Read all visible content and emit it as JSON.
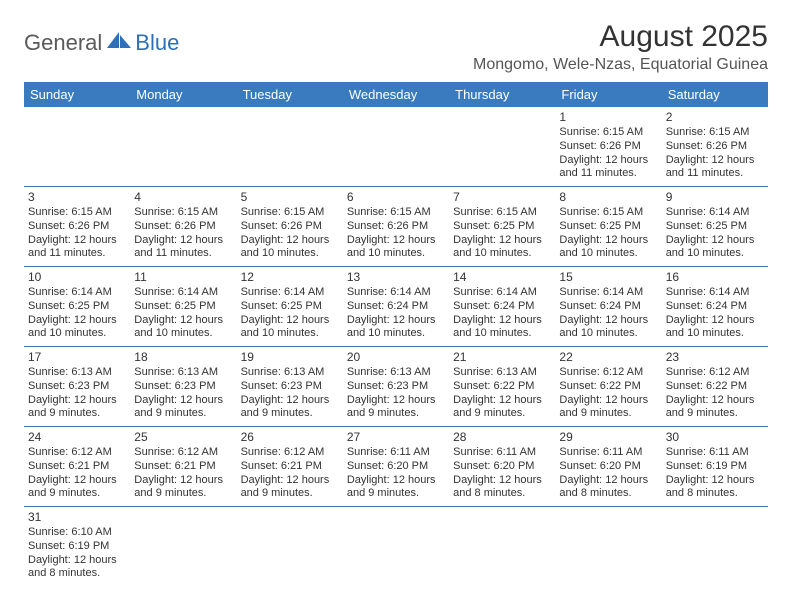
{
  "logo": {
    "general": "General",
    "blue": "Blue",
    "shape_color": "#2d6fb8"
  },
  "title": {
    "month": "August 2025",
    "location": "Mongomo, Wele-Nzas, Equatorial Guinea"
  },
  "colors": {
    "header_bg": "#3a7bbf",
    "header_fg": "#ffffff",
    "border": "#3a7bbf",
    "text": "#333333"
  },
  "weekdays": [
    "Sunday",
    "Monday",
    "Tuesday",
    "Wednesday",
    "Thursday",
    "Friday",
    "Saturday"
  ],
  "weeks": [
    [
      null,
      null,
      null,
      null,
      null,
      {
        "d": "1",
        "sr": "Sunrise: 6:15 AM",
        "ss": "Sunset: 6:26 PM",
        "dl1": "Daylight: 12 hours",
        "dl2": "and 11 minutes."
      },
      {
        "d": "2",
        "sr": "Sunrise: 6:15 AM",
        "ss": "Sunset: 6:26 PM",
        "dl1": "Daylight: 12 hours",
        "dl2": "and 11 minutes."
      }
    ],
    [
      {
        "d": "3",
        "sr": "Sunrise: 6:15 AM",
        "ss": "Sunset: 6:26 PM",
        "dl1": "Daylight: 12 hours",
        "dl2": "and 11 minutes."
      },
      {
        "d": "4",
        "sr": "Sunrise: 6:15 AM",
        "ss": "Sunset: 6:26 PM",
        "dl1": "Daylight: 12 hours",
        "dl2": "and 11 minutes."
      },
      {
        "d": "5",
        "sr": "Sunrise: 6:15 AM",
        "ss": "Sunset: 6:26 PM",
        "dl1": "Daylight: 12 hours",
        "dl2": "and 10 minutes."
      },
      {
        "d": "6",
        "sr": "Sunrise: 6:15 AM",
        "ss": "Sunset: 6:26 PM",
        "dl1": "Daylight: 12 hours",
        "dl2": "and 10 minutes."
      },
      {
        "d": "7",
        "sr": "Sunrise: 6:15 AM",
        "ss": "Sunset: 6:25 PM",
        "dl1": "Daylight: 12 hours",
        "dl2": "and 10 minutes."
      },
      {
        "d": "8",
        "sr": "Sunrise: 6:15 AM",
        "ss": "Sunset: 6:25 PM",
        "dl1": "Daylight: 12 hours",
        "dl2": "and 10 minutes."
      },
      {
        "d": "9",
        "sr": "Sunrise: 6:14 AM",
        "ss": "Sunset: 6:25 PM",
        "dl1": "Daylight: 12 hours",
        "dl2": "and 10 minutes."
      }
    ],
    [
      {
        "d": "10",
        "sr": "Sunrise: 6:14 AM",
        "ss": "Sunset: 6:25 PM",
        "dl1": "Daylight: 12 hours",
        "dl2": "and 10 minutes."
      },
      {
        "d": "11",
        "sr": "Sunrise: 6:14 AM",
        "ss": "Sunset: 6:25 PM",
        "dl1": "Daylight: 12 hours",
        "dl2": "and 10 minutes."
      },
      {
        "d": "12",
        "sr": "Sunrise: 6:14 AM",
        "ss": "Sunset: 6:25 PM",
        "dl1": "Daylight: 12 hours",
        "dl2": "and 10 minutes."
      },
      {
        "d": "13",
        "sr": "Sunrise: 6:14 AM",
        "ss": "Sunset: 6:24 PM",
        "dl1": "Daylight: 12 hours",
        "dl2": "and 10 minutes."
      },
      {
        "d": "14",
        "sr": "Sunrise: 6:14 AM",
        "ss": "Sunset: 6:24 PM",
        "dl1": "Daylight: 12 hours",
        "dl2": "and 10 minutes."
      },
      {
        "d": "15",
        "sr": "Sunrise: 6:14 AM",
        "ss": "Sunset: 6:24 PM",
        "dl1": "Daylight: 12 hours",
        "dl2": "and 10 minutes."
      },
      {
        "d": "16",
        "sr": "Sunrise: 6:14 AM",
        "ss": "Sunset: 6:24 PM",
        "dl1": "Daylight: 12 hours",
        "dl2": "and 10 minutes."
      }
    ],
    [
      {
        "d": "17",
        "sr": "Sunrise: 6:13 AM",
        "ss": "Sunset: 6:23 PM",
        "dl1": "Daylight: 12 hours",
        "dl2": "and 9 minutes."
      },
      {
        "d": "18",
        "sr": "Sunrise: 6:13 AM",
        "ss": "Sunset: 6:23 PM",
        "dl1": "Daylight: 12 hours",
        "dl2": "and 9 minutes."
      },
      {
        "d": "19",
        "sr": "Sunrise: 6:13 AM",
        "ss": "Sunset: 6:23 PM",
        "dl1": "Daylight: 12 hours",
        "dl2": "and 9 minutes."
      },
      {
        "d": "20",
        "sr": "Sunrise: 6:13 AM",
        "ss": "Sunset: 6:23 PM",
        "dl1": "Daylight: 12 hours",
        "dl2": "and 9 minutes."
      },
      {
        "d": "21",
        "sr": "Sunrise: 6:13 AM",
        "ss": "Sunset: 6:22 PM",
        "dl1": "Daylight: 12 hours",
        "dl2": "and 9 minutes."
      },
      {
        "d": "22",
        "sr": "Sunrise: 6:12 AM",
        "ss": "Sunset: 6:22 PM",
        "dl1": "Daylight: 12 hours",
        "dl2": "and 9 minutes."
      },
      {
        "d": "23",
        "sr": "Sunrise: 6:12 AM",
        "ss": "Sunset: 6:22 PM",
        "dl1": "Daylight: 12 hours",
        "dl2": "and 9 minutes."
      }
    ],
    [
      {
        "d": "24",
        "sr": "Sunrise: 6:12 AM",
        "ss": "Sunset: 6:21 PM",
        "dl1": "Daylight: 12 hours",
        "dl2": "and 9 minutes."
      },
      {
        "d": "25",
        "sr": "Sunrise: 6:12 AM",
        "ss": "Sunset: 6:21 PM",
        "dl1": "Daylight: 12 hours",
        "dl2": "and 9 minutes."
      },
      {
        "d": "26",
        "sr": "Sunrise: 6:12 AM",
        "ss": "Sunset: 6:21 PM",
        "dl1": "Daylight: 12 hours",
        "dl2": "and 9 minutes."
      },
      {
        "d": "27",
        "sr": "Sunrise: 6:11 AM",
        "ss": "Sunset: 6:20 PM",
        "dl1": "Daylight: 12 hours",
        "dl2": "and 9 minutes."
      },
      {
        "d": "28",
        "sr": "Sunrise: 6:11 AM",
        "ss": "Sunset: 6:20 PM",
        "dl1": "Daylight: 12 hours",
        "dl2": "and 8 minutes."
      },
      {
        "d": "29",
        "sr": "Sunrise: 6:11 AM",
        "ss": "Sunset: 6:20 PM",
        "dl1": "Daylight: 12 hours",
        "dl2": "and 8 minutes."
      },
      {
        "d": "30",
        "sr": "Sunrise: 6:11 AM",
        "ss": "Sunset: 6:19 PM",
        "dl1": "Daylight: 12 hours",
        "dl2": "and 8 minutes."
      }
    ],
    [
      {
        "d": "31",
        "sr": "Sunrise: 6:10 AM",
        "ss": "Sunset: 6:19 PM",
        "dl1": "Daylight: 12 hours",
        "dl2": "and 8 minutes."
      },
      null,
      null,
      null,
      null,
      null,
      null
    ]
  ]
}
